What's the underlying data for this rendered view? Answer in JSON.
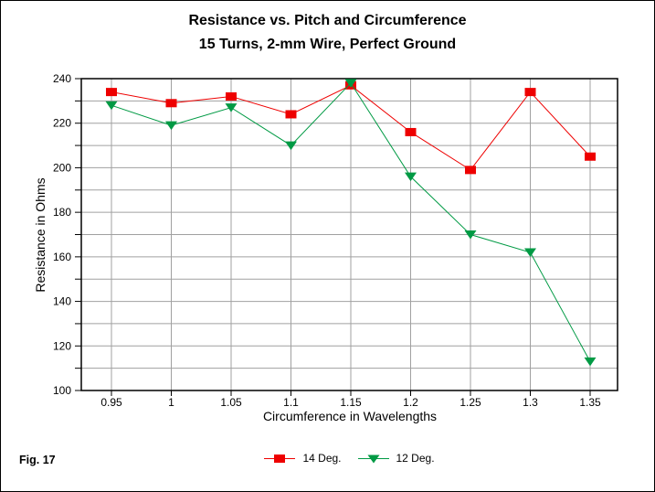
{
  "page": {
    "figure_label": "Fig. 17"
  },
  "chart_data": {
    "type": "line",
    "title": "Resistance vs. Pitch and Circumference",
    "subtitle": "15 Turns, 2-mm Wire, Perfect Ground",
    "xlabel": "Circumference in Wavelengths",
    "ylabel": "Resistance in Ohms",
    "x": [
      0.95,
      1,
      1.05,
      1.1,
      1.15,
      1.2,
      1.25,
      1.3,
      1.35
    ],
    "x_tick_labels": [
      "0.95",
      "1",
      "1.05",
      "1.1",
      "1.15",
      "1.2",
      "1.25",
      "1.3",
      "1.35"
    ],
    "ylim": [
      100,
      240
    ],
    "y_major_tick_step": 20,
    "y_minor_tick_step": 10,
    "grid": true,
    "grid_color": "#a0a0a0",
    "axis_color": "#000000",
    "legend_position": "bottom-center",
    "series": [
      {
        "name": "14 Deg.",
        "color": "#ee0000",
        "marker": "square",
        "values": [
          234,
          229,
          232,
          224,
          237,
          216,
          199,
          234,
          205
        ]
      },
      {
        "name": "12 Deg.",
        "color": "#009a44",
        "marker": "triangle-down",
        "values": [
          228,
          219,
          227,
          210,
          238,
          196,
          170,
          162,
          113
        ]
      }
    ]
  }
}
